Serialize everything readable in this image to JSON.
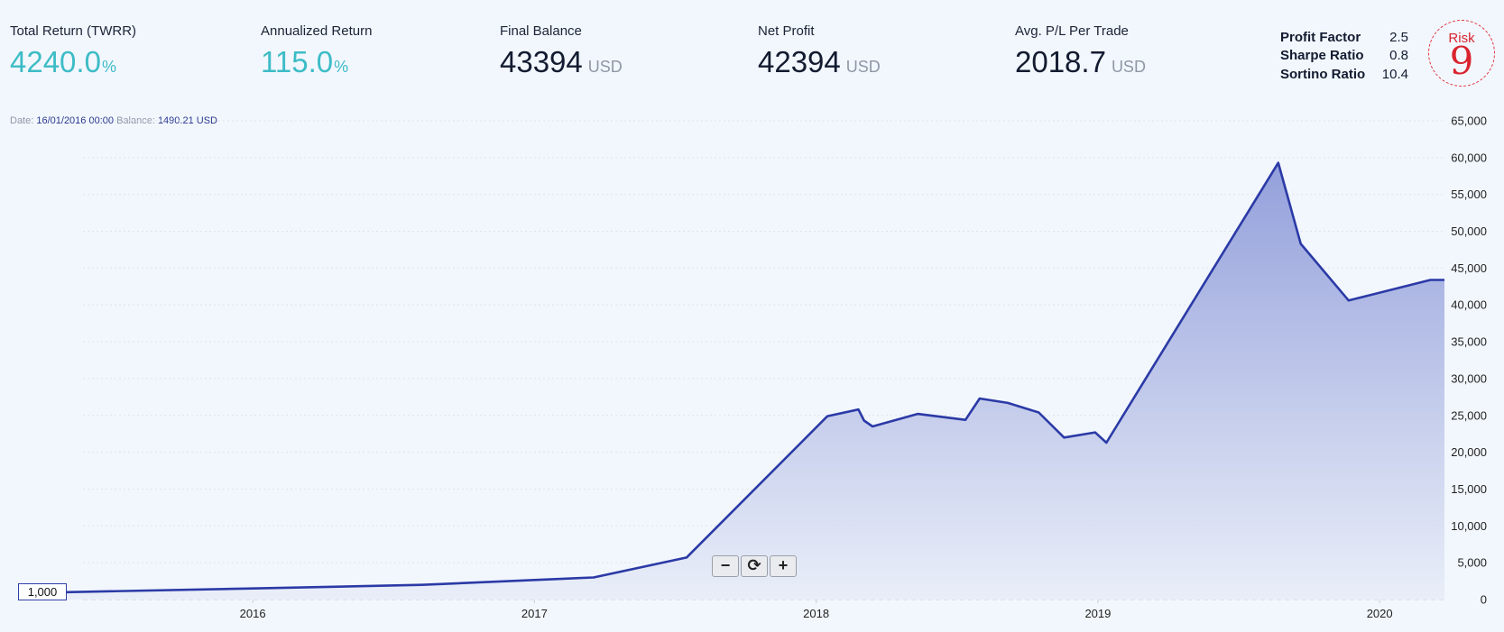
{
  "stats": [
    {
      "label": "Total Return (TWRR)",
      "value": "4240.0",
      "unit": "%"
    },
    {
      "label": "Annualized Return",
      "value": "115.0",
      "unit": "%"
    },
    {
      "label": "Final Balance",
      "value": "43394",
      "unit": "USD"
    },
    {
      "label": "Net Profit",
      "value": "42394",
      "unit": "USD"
    },
    {
      "label": "Avg. P/L Per Trade",
      "value": "2018.7",
      "unit": "USD"
    }
  ],
  "ratios": [
    {
      "name": "Profit Factor",
      "value": "2.5"
    },
    {
      "name": "Sharpe Ratio",
      "value": "0.8"
    },
    {
      "name": "Sortino Ratio",
      "value": "10.4"
    }
  ],
  "risk": {
    "label": "Risk",
    "value": "9"
  },
  "tooltip": {
    "date_label": "Date:",
    "date": "16/01/2016 00:00",
    "balance_label": "Balance:",
    "balance": "1490.21 USD"
  },
  "start_label": "1,000",
  "zoom": {
    "out": "−",
    "reset": "⟳",
    "in": "+"
  },
  "colors": {
    "line": "#2b3aa6",
    "teal": "#3dbcc6",
    "risk": "#d9242e"
  },
  "chart_data": {
    "type": "area",
    "title": "",
    "xlabel": "",
    "ylabel": "",
    "x_ticks": [
      "2016",
      "2017",
      "2018",
      "2019",
      "2020"
    ],
    "y_ticks": [
      "0",
      "5,000",
      "10,000",
      "15,000",
      "20,000",
      "25,000",
      "30,000",
      "35,000",
      "40,000",
      "45,000",
      "50,000",
      "55,000",
      "60,000",
      "65,000"
    ],
    "ylim": [
      0,
      65000
    ],
    "xlim": [
      2015.34,
      2020.23
    ],
    "grid": true,
    "series": [
      {
        "x": [
          2015.34,
          2016.0,
          2016.6,
          2017.21,
          2017.54,
          2018.04,
          2018.15,
          2018.17,
          2018.2,
          2018.36,
          2018.53,
          2018.58,
          2018.68,
          2018.79,
          2018.88,
          2018.99,
          2019.03,
          2019.64,
          2019.72,
          2019.89,
          2020.18,
          2020.23
        ],
        "y": [
          1000,
          1500,
          2000,
          3000,
          5700,
          24900,
          25800,
          24300,
          23500,
          25200,
          24400,
          27300,
          26700,
          25400,
          22000,
          22700,
          21300,
          59300,
          48300,
          40600,
          43400,
          43394
        ]
      }
    ]
  }
}
